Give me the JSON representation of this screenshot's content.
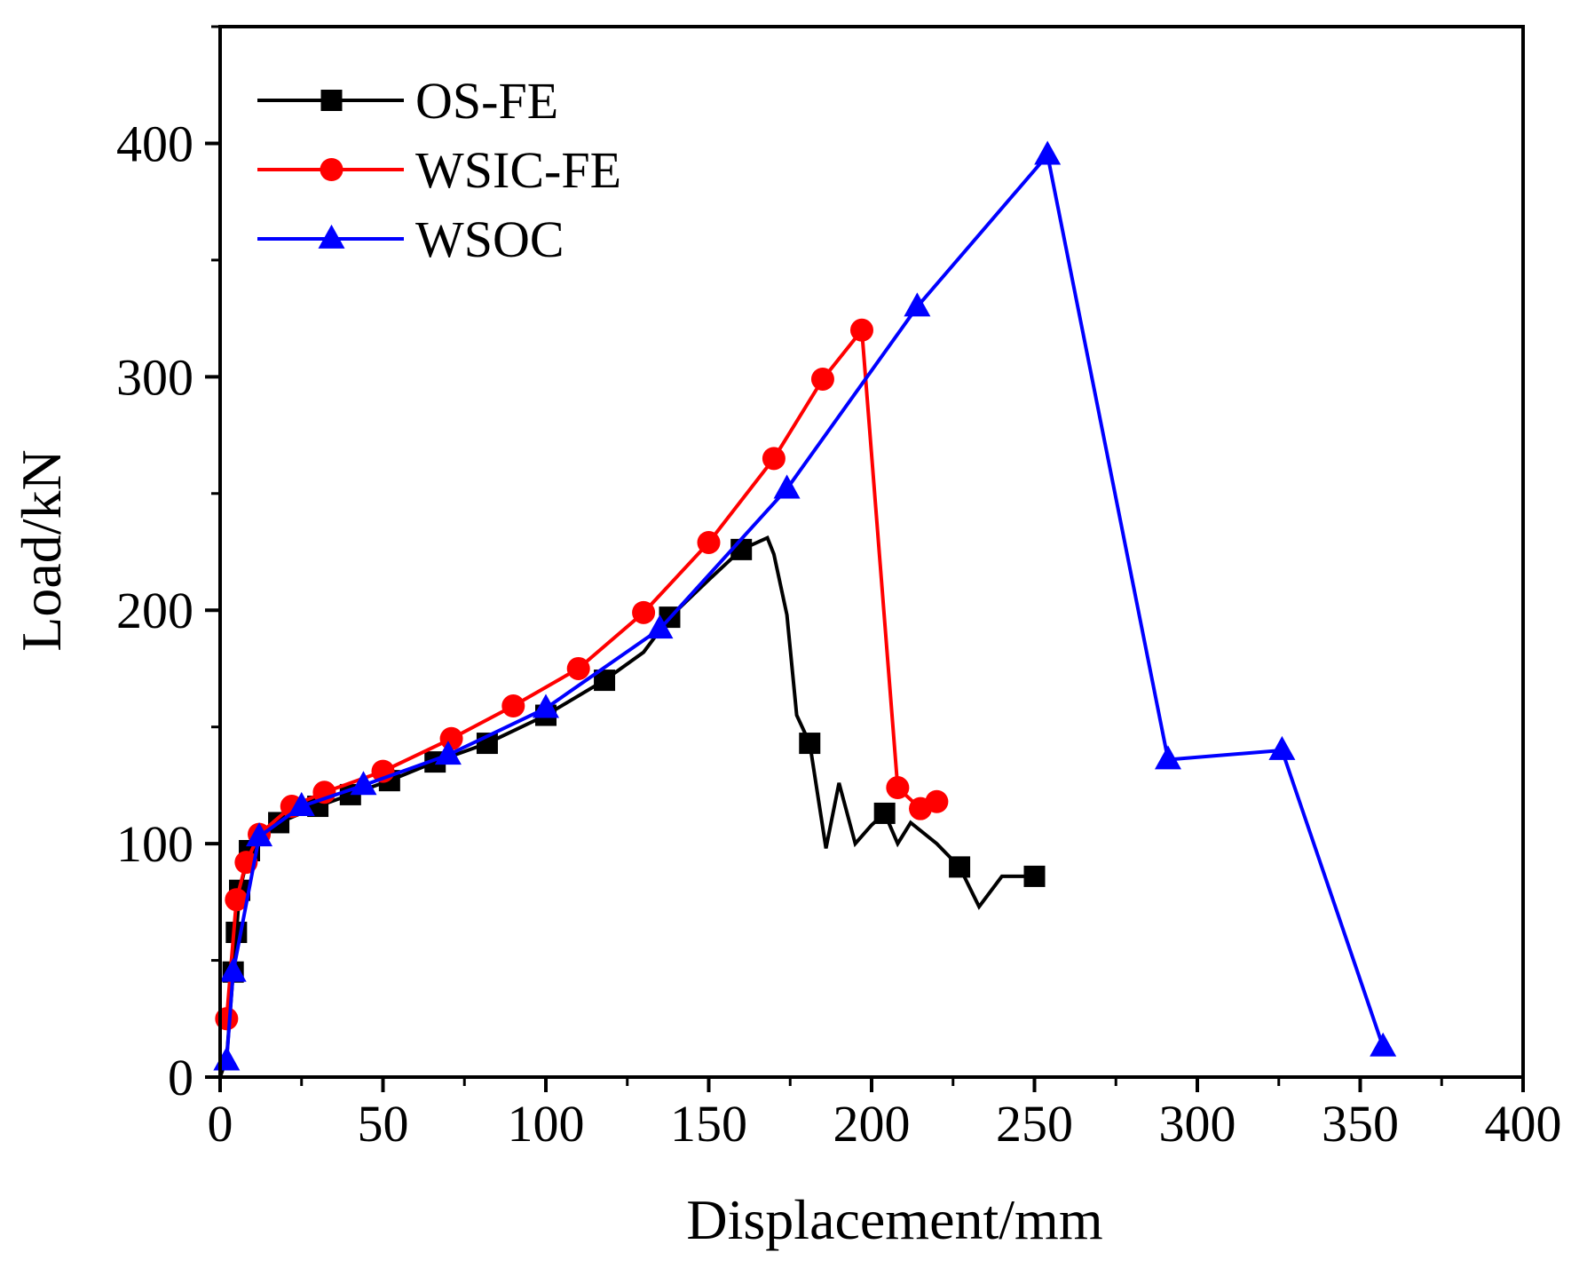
{
  "chart_data": {
    "type": "line",
    "title": "",
    "xlabel": "Displacement/mm",
    "ylabel": "Load/kN",
    "xlim": [
      0,
      400
    ],
    "ylim": [
      0,
      450
    ],
    "xticks": [
      0,
      50,
      100,
      150,
      200,
      250,
      300,
      350,
      400
    ],
    "xtick_labels": [
      "0",
      "50",
      "100",
      "150",
      "200",
      "250",
      "300",
      "350",
      "400"
    ],
    "yticks": [
      0,
      100,
      200,
      300,
      400
    ],
    "ytick_labels": [
      "0",
      "100",
      "200",
      "300",
      "400"
    ],
    "x_minor_step": 25,
    "y_minor_step": 50,
    "grid": false,
    "legend_position": "top-left",
    "series": [
      {
        "name": "OS-FE",
        "color": "#000000",
        "marker": "square",
        "line": [
          [
            0,
            0
          ],
          [
            2,
            8
          ],
          [
            4,
            45
          ],
          [
            5,
            62
          ],
          [
            6,
            80
          ],
          [
            9,
            97
          ],
          [
            12,
            104
          ],
          [
            18,
            109
          ],
          [
            30,
            116
          ],
          [
            40,
            121
          ],
          [
            52,
            127
          ],
          [
            66,
            135
          ],
          [
            82,
            143
          ],
          [
            100,
            155
          ],
          [
            118,
            170
          ],
          [
            130,
            182
          ],
          [
            138,
            197
          ],
          [
            150,
            213
          ],
          [
            160,
            226
          ],
          [
            168,
            231
          ],
          [
            170,
            224
          ],
          [
            174,
            198
          ],
          [
            177,
            155
          ],
          [
            181,
            143
          ],
          [
            186,
            98
          ],
          [
            190,
            126
          ],
          [
            195,
            100
          ],
          [
            200,
            108
          ],
          [
            204,
            113
          ],
          [
            208,
            100
          ],
          [
            212,
            109
          ],
          [
            220,
            100
          ],
          [
            227,
            90
          ],
          [
            233,
            73
          ],
          [
            240,
            86
          ],
          [
            250,
            86
          ]
        ],
        "markers": [
          [
            4,
            45
          ],
          [
            5,
            62
          ],
          [
            6,
            80
          ],
          [
            9,
            97
          ],
          [
            18,
            109
          ],
          [
            30,
            116
          ],
          [
            40,
            121
          ],
          [
            52,
            127
          ],
          [
            66,
            135
          ],
          [
            82,
            143
          ],
          [
            100,
            155
          ],
          [
            118,
            170
          ],
          [
            138,
            197
          ],
          [
            160,
            226
          ],
          [
            181,
            143
          ],
          [
            204,
            113
          ],
          [
            227,
            90
          ],
          [
            250,
            86
          ]
        ]
      },
      {
        "name": "WSIC-FE",
        "color": "#ff0000",
        "marker": "circle",
        "line": [
          [
            2,
            25
          ],
          [
            5,
            76
          ],
          [
            8,
            92
          ],
          [
            12,
            104
          ],
          [
            22,
            116
          ],
          [
            32,
            122
          ],
          [
            50,
            131
          ],
          [
            71,
            145
          ],
          [
            90,
            159
          ],
          [
            110,
            175
          ],
          [
            130,
            199
          ],
          [
            150,
            229
          ],
          [
            170,
            265
          ],
          [
            185,
            299
          ],
          [
            197,
            320
          ],
          [
            208,
            124
          ],
          [
            215,
            115
          ],
          [
            220,
            118
          ]
        ],
        "markers": [
          [
            2,
            25
          ],
          [
            5,
            76
          ],
          [
            8,
            92
          ],
          [
            12,
            104
          ],
          [
            22,
            116
          ],
          [
            32,
            122
          ],
          [
            50,
            131
          ],
          [
            71,
            145
          ],
          [
            90,
            159
          ],
          [
            110,
            175
          ],
          [
            130,
            199
          ],
          [
            150,
            229
          ],
          [
            170,
            265
          ],
          [
            185,
            299
          ],
          [
            197,
            320
          ],
          [
            208,
            124
          ],
          [
            215,
            115
          ],
          [
            220,
            118
          ]
        ]
      },
      {
        "name": "WSOC",
        "color": "#0000ff",
        "marker": "triangle",
        "line": [
          [
            2,
            7
          ],
          [
            4,
            45
          ],
          [
            12,
            103
          ],
          [
            25,
            116
          ],
          [
            44,
            125
          ],
          [
            70,
            138
          ],
          [
            100,
            158
          ],
          [
            135,
            192
          ],
          [
            174,
            252
          ],
          [
            214,
            330
          ],
          [
            254,
            395
          ],
          [
            291,
            136
          ],
          [
            326,
            140
          ],
          [
            357,
            13
          ]
        ],
        "markers": [
          [
            2,
            7
          ],
          [
            4,
            45
          ],
          [
            12,
            103
          ],
          [
            25,
            116
          ],
          [
            44,
            125
          ],
          [
            70,
            138
          ],
          [
            100,
            158
          ],
          [
            135,
            192
          ],
          [
            174,
            252
          ],
          [
            214,
            330
          ],
          [
            254,
            395
          ],
          [
            291,
            136
          ],
          [
            326,
            140
          ],
          [
            357,
            13
          ]
        ]
      }
    ]
  }
}
